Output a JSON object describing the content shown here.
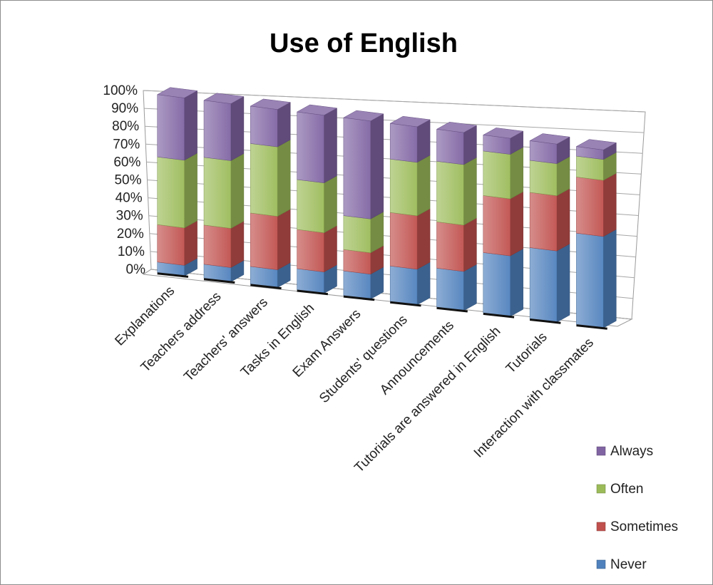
{
  "chart_data": {
    "type": "bar",
    "stacking": "percent",
    "projection": "3d",
    "title": "Use of English",
    "categories": [
      "Explanations",
      "Teachers address",
      "Teachers' answers",
      "Tasks in English",
      "Exam Answers",
      "Students' questions",
      "Announcements",
      "Tutorials are answered in English",
      "Tutorials",
      "Interaction with classmates"
    ],
    "series": [
      {
        "name": "Never",
        "color": "#4F81BD",
        "values": [
          6,
          8,
          10,
          12,
          14,
          20,
          22,
          34,
          40,
          57
        ]
      },
      {
        "name": "Sometimes",
        "color": "#C0504D",
        "values": [
          21,
          22,
          30,
          22,
          12,
          30,
          26,
          32,
          31,
          35
        ]
      },
      {
        "name": "Often",
        "color": "#9BBB59",
        "values": [
          38,
          38,
          39,
          28,
          19,
          30,
          34,
          25,
          18,
          13
        ]
      },
      {
        "name": "Always",
        "color": "#8064A2",
        "values": [
          35,
          32,
          21,
          38,
          55,
          20,
          18,
          9,
          11,
          6
        ]
      }
    ],
    "ylim": [
      0,
      100
    ],
    "yticks": [
      "0%",
      "10%",
      "20%",
      "30%",
      "40%",
      "50%",
      "60%",
      "70%",
      "80%",
      "90%",
      "100%"
    ],
    "legend": {
      "position": "bottom-right",
      "entries": [
        "Always",
        "Often",
        "Sometimes",
        "Never"
      ]
    },
    "grid": true
  }
}
